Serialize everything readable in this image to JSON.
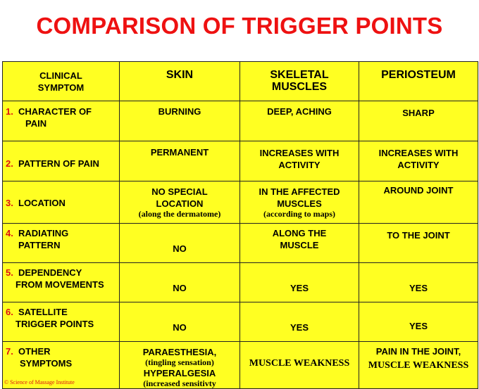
{
  "title": "COMPARISON OF TRIGGER POINTS",
  "columns": [
    "CLINICAL SYMPTOM",
    "SKIN",
    "SKELETAL MUSCLES",
    "PERIOSTEUM"
  ],
  "column_lines": {
    "symptom": [
      "CLINICAL",
      "SYMPTOM"
    ],
    "skin": [
      "SKIN"
    ],
    "muscle": [
      "SKELETAL",
      "MUSCLES"
    ],
    "periosteum": [
      "PERIOSTEUM"
    ]
  },
  "rows": [
    {
      "num": "1.",
      "symptom": [
        "CHARACTER OF",
        "PAIN"
      ],
      "skin": [
        "BURNING"
      ],
      "muscle": [
        "DEEP, ACHING"
      ],
      "periosteum": [
        "SHARP"
      ]
    },
    {
      "num": "2.",
      "symptom": [
        "PATTERN OF PAIN"
      ],
      "skin": [
        "PERMANENT"
      ],
      "muscle": [
        "INCREASES WITH",
        "ACTIVITY"
      ],
      "periosteum": [
        "INCREASES WITH",
        "ACTIVITY"
      ]
    },
    {
      "num": "3.",
      "symptom": [
        "LOCATION"
      ],
      "skin": [
        "NO SPECIAL",
        "LOCATION"
      ],
      "skin_note": "(along the dermatome)",
      "muscle": [
        "IN THE AFFECTED",
        "MUSCLES"
      ],
      "muscle_note": "(according to maps)",
      "periosteum": [
        "AROUND JOINT"
      ]
    },
    {
      "num": "4.",
      "symptom": [
        "RADIATING",
        "PATTERN"
      ],
      "skin": [
        "NO"
      ],
      "muscle": [
        "ALONG THE",
        "MUSCLE"
      ],
      "periosteum": [
        "TO THE JOINT"
      ]
    },
    {
      "num": "5.",
      "symptom": [
        "DEPENDENCY",
        "FROM MOVEMENTS"
      ],
      "skin": [
        "NO"
      ],
      "muscle": [
        "YES"
      ],
      "periosteum": [
        "YES"
      ]
    },
    {
      "num": "6.",
      "symptom": [
        "SATELLITE",
        "TRIGGER POINTS"
      ],
      "skin": [
        "NO"
      ],
      "muscle": [
        "YES"
      ],
      "periosteum": [
        "YES"
      ]
    },
    {
      "num": "7.",
      "symptom": [
        "OTHER",
        "SYMPTOMS"
      ],
      "skin": [
        "PARAESTHESIA,"
      ],
      "skin_note": "(tingling sensation)",
      "skin_2": "HYPERALGESIA",
      "skin_note_2": "(increased sensitivty",
      "muscle": [
        "MUSCLE WEAKNESS"
      ],
      "periosteum": [
        "PAIN IN THE JOINT,"
      ],
      "periosteum_2": "MUSCLE WEAKNESS"
    }
  ],
  "copyright": "© Science of Massage Institute",
  "colors": {
    "title": "#ee1111",
    "table_bg": "#ffff22",
    "header_text": "#0a0a88",
    "number": "#dd1111"
  }
}
